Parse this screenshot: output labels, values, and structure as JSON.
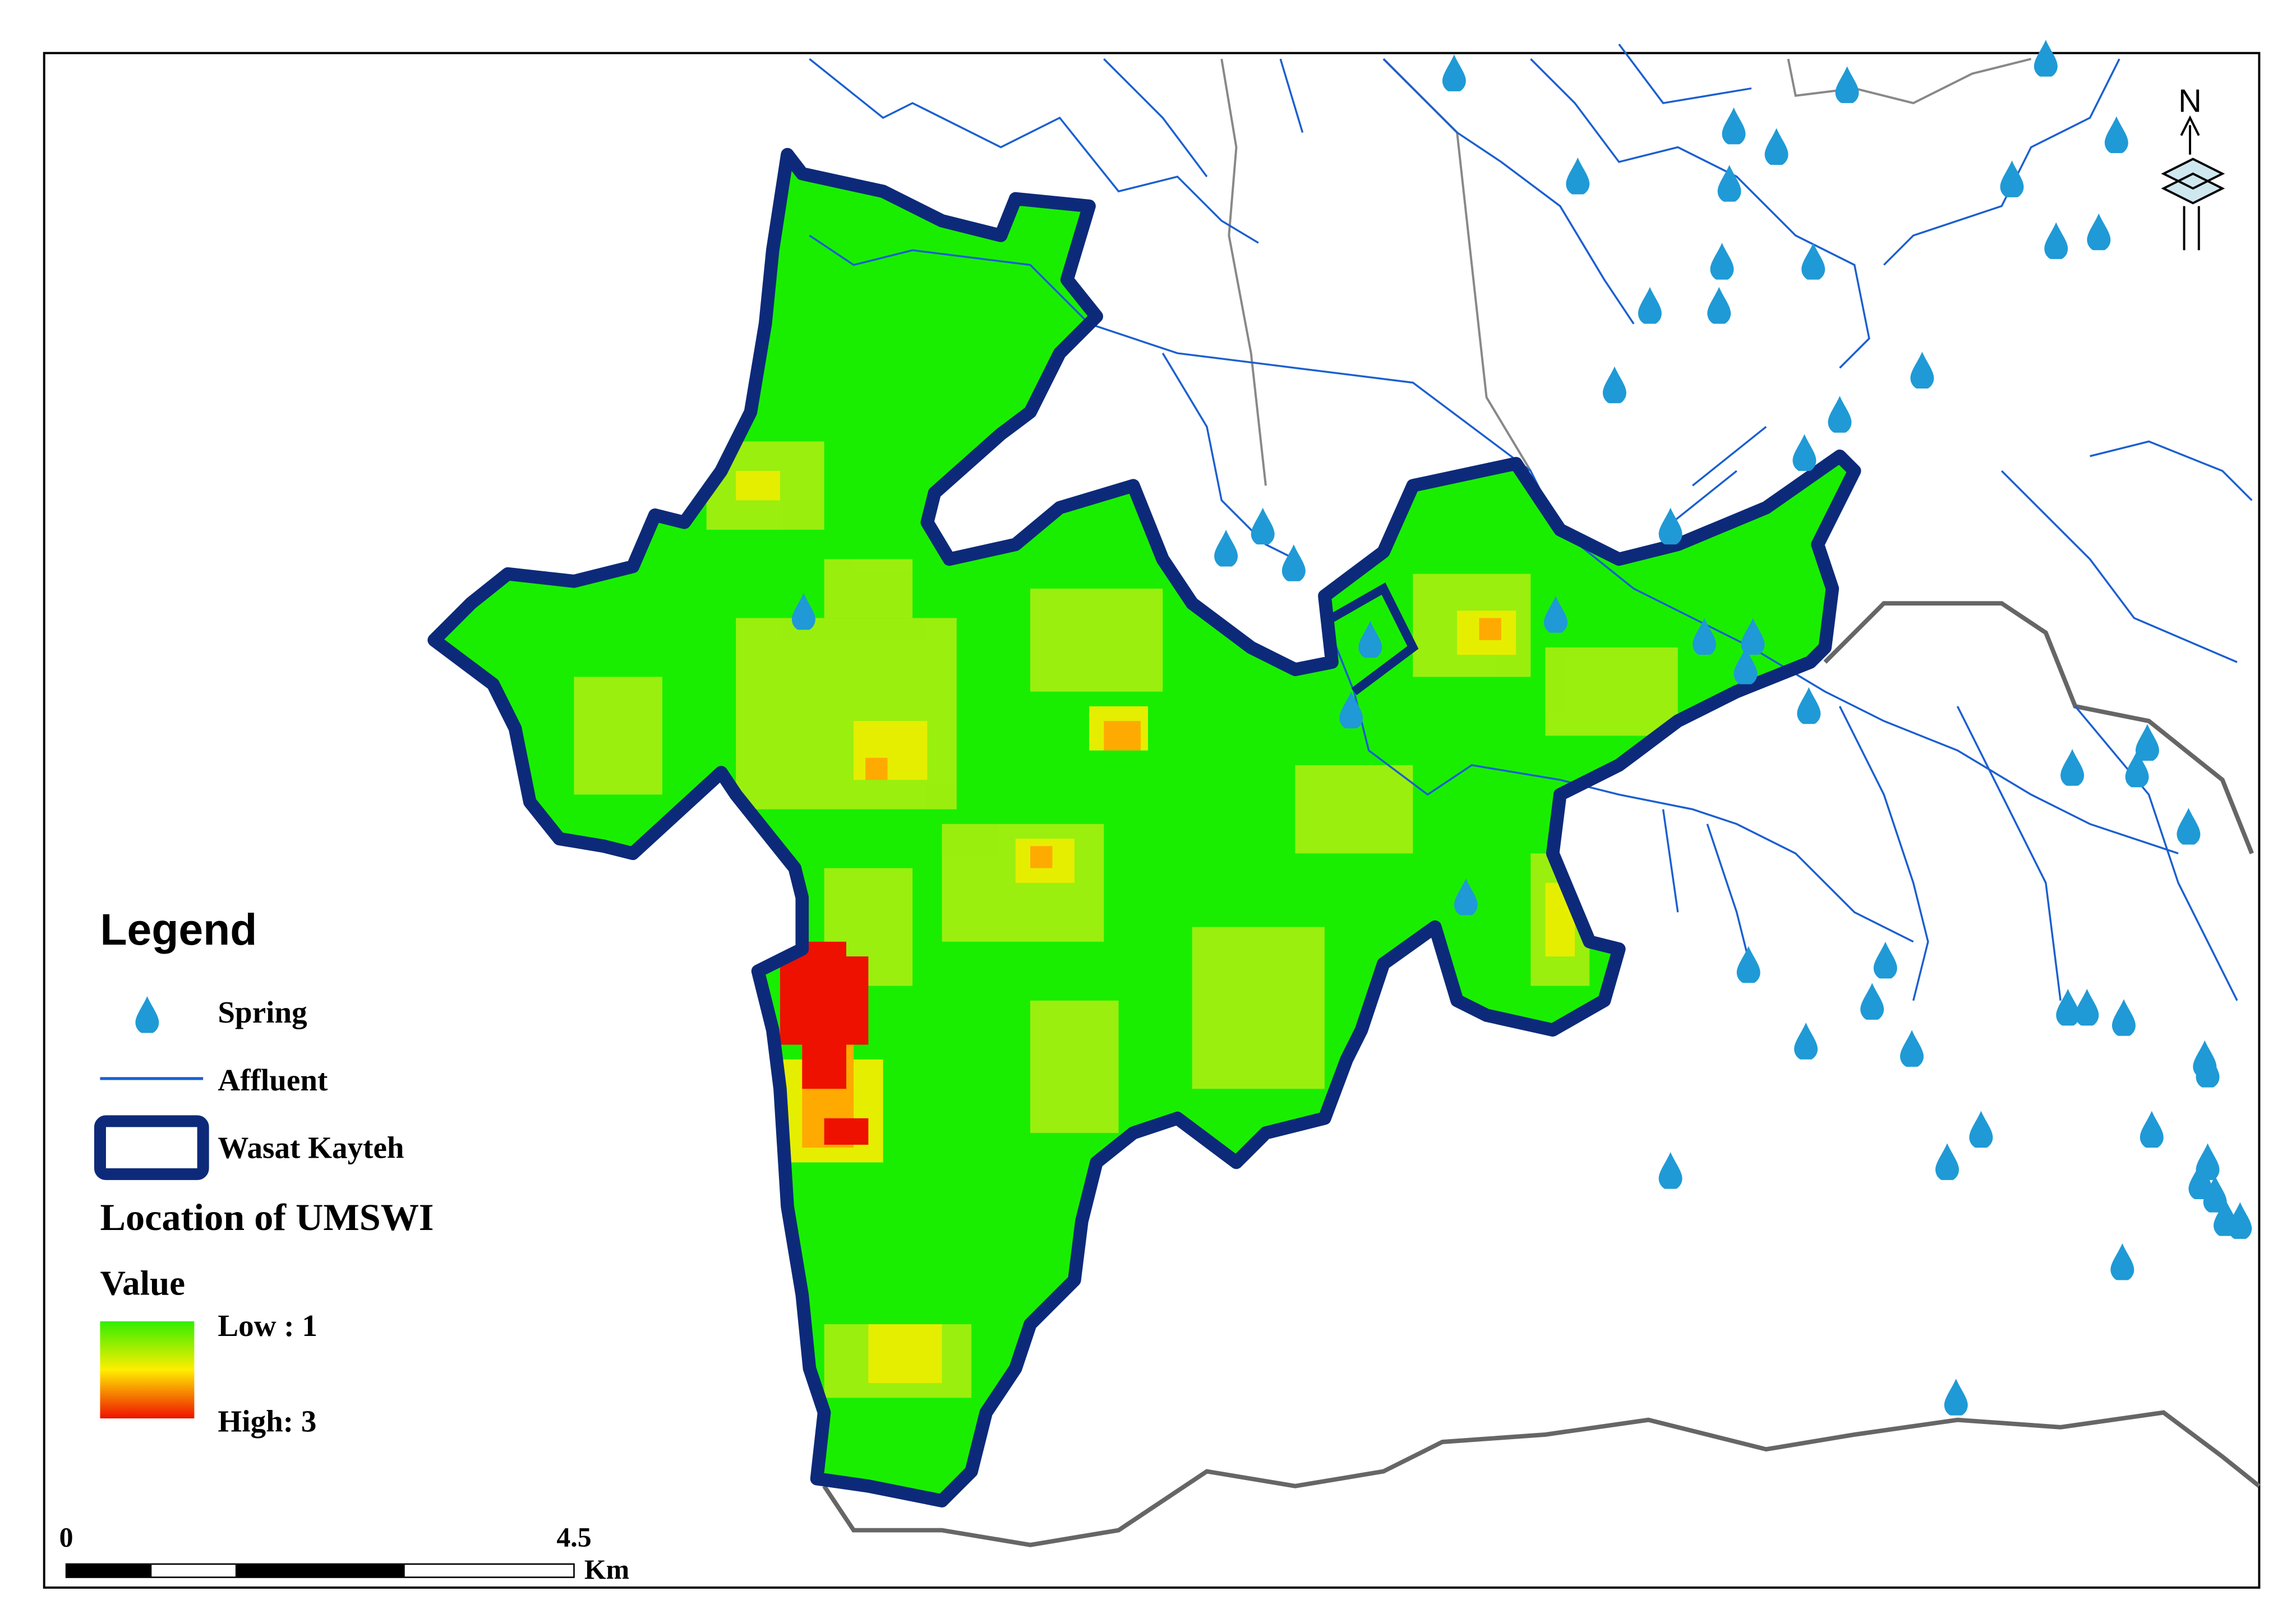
{
  "legend": {
    "title": "Legend",
    "spring": "Spring",
    "affluent": "Affluent",
    "boundary": "Wasat Kayteh",
    "layer_title": "Location of UMSWI",
    "value_title": "Value",
    "low": "Low : 1",
    "high": "High: 3"
  },
  "scale_bar": {
    "start": "0",
    "end": "4.5",
    "unit": "Km"
  },
  "north_arrow": "N"
}
